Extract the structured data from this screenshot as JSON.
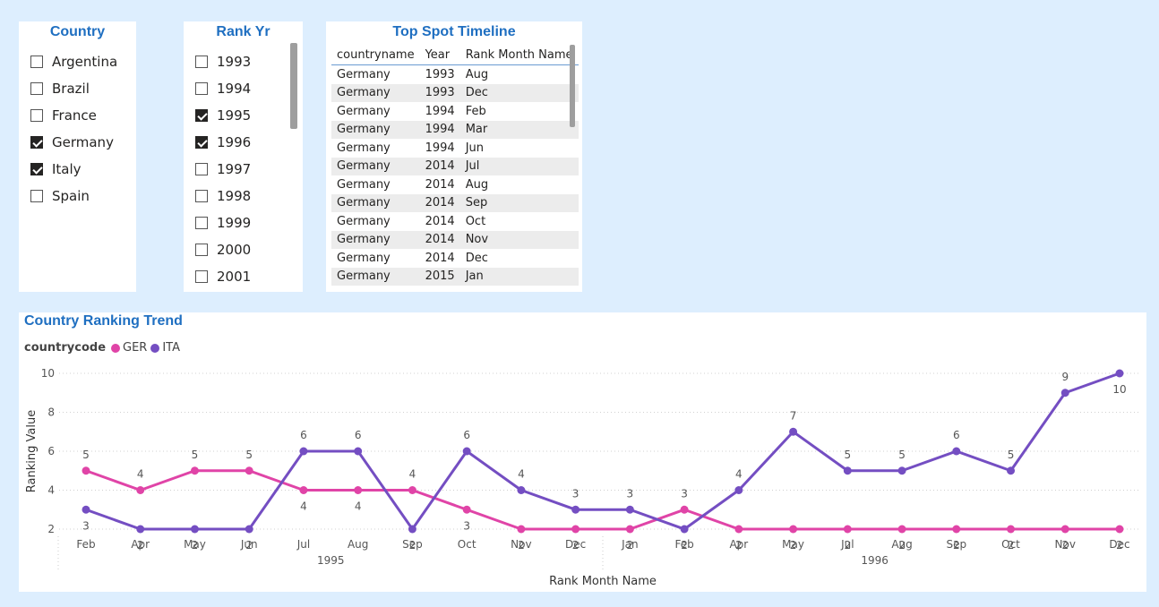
{
  "country_slicer": {
    "title": "Country",
    "items": [
      {
        "label": "Argentina",
        "checked": false
      },
      {
        "label": "Brazil",
        "checked": false
      },
      {
        "label": "France",
        "checked": false
      },
      {
        "label": "Germany",
        "checked": true
      },
      {
        "label": "Italy",
        "checked": true
      },
      {
        "label": "Spain",
        "checked": false
      }
    ]
  },
  "year_slicer": {
    "title": "Rank Yr",
    "items": [
      {
        "label": "1993",
        "checked": false
      },
      {
        "label": "1994",
        "checked": false
      },
      {
        "label": "1995",
        "checked": true
      },
      {
        "label": "1996",
        "checked": true
      },
      {
        "label": "1997",
        "checked": false
      },
      {
        "label": "1998",
        "checked": false
      },
      {
        "label": "1999",
        "checked": false
      },
      {
        "label": "2000",
        "checked": false
      },
      {
        "label": "2001",
        "checked": false
      }
    ]
  },
  "timeline": {
    "title": "Top Spot Timeline",
    "columns": [
      "countryname",
      "Year",
      "Rank Month Name"
    ],
    "rows": [
      [
        "Germany",
        "1993",
        "Aug"
      ],
      [
        "Germany",
        "1993",
        "Dec"
      ],
      [
        "Germany",
        "1994",
        "Feb"
      ],
      [
        "Germany",
        "1994",
        "Mar"
      ],
      [
        "Germany",
        "1994",
        "Jun"
      ],
      [
        "Germany",
        "2014",
        "Jul"
      ],
      [
        "Germany",
        "2014",
        "Aug"
      ],
      [
        "Germany",
        "2014",
        "Sep"
      ],
      [
        "Germany",
        "2014",
        "Oct"
      ],
      [
        "Germany",
        "2014",
        "Nov"
      ],
      [
        "Germany",
        "2014",
        "Dec"
      ],
      [
        "Germany",
        "2015",
        "Jan"
      ]
    ]
  },
  "chart_data": {
    "type": "line",
    "title": "Country Ranking Trend",
    "legend_title": "countrycode",
    "legend_position": "top-left",
    "xlabel": "Rank Month Name",
    "ylabel": "Ranking Value",
    "ylim": [
      2,
      10
    ],
    "yticks": [
      2,
      4,
      6,
      8,
      10
    ],
    "grid": true,
    "categories": [
      "Feb",
      "Apr",
      "May",
      "Jun",
      "Jul",
      "Aug",
      "Sep",
      "Oct",
      "Nov",
      "Dec",
      "Jan",
      "Feb",
      "Apr",
      "May",
      "Jul",
      "Aug",
      "Sep",
      "Oct",
      "Nov",
      "Dec"
    ],
    "groups": [
      {
        "label": "1995",
        "start": 0,
        "end": 9
      },
      {
        "label": "1996",
        "start": 10,
        "end": 19
      }
    ],
    "series": [
      {
        "name": "GER",
        "color": "#e044a7",
        "values": [
          5,
          4,
          5,
          5,
          4,
          4,
          4,
          3,
          2,
          2,
          2,
          3,
          2,
          2,
          2,
          2,
          2,
          2,
          2,
          2
        ]
      },
      {
        "name": "ITA",
        "color": "#744ec2",
        "values": [
          3,
          2,
          2,
          2,
          6,
          6,
          2,
          6,
          4,
          3,
          3,
          2,
          4,
          7,
          5,
          5,
          6,
          5,
          9,
          10
        ]
      }
    ]
  }
}
